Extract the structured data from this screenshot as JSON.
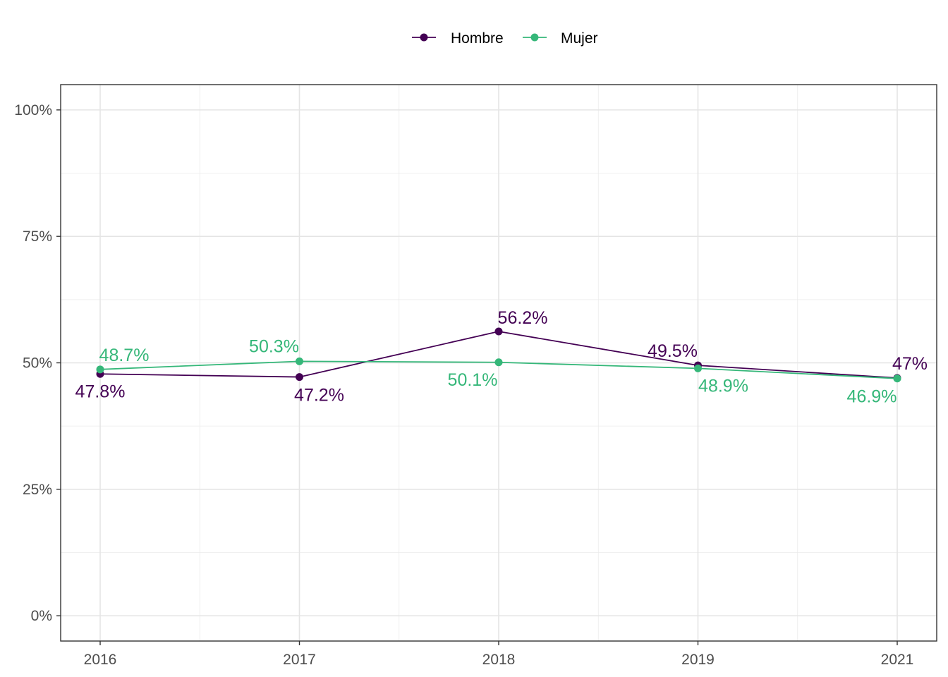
{
  "chart_data": {
    "type": "line",
    "title": "",
    "xlabel": "",
    "ylabel": "",
    "categories": [
      "2016",
      "2017",
      "2018",
      "2019",
      "2021"
    ],
    "ylim": [
      -0.05,
      1.05
    ],
    "y_ticks": [
      0,
      0.25,
      0.5,
      0.75,
      1.0
    ],
    "y_tick_labels": [
      "0%",
      "25%",
      "50%",
      "75%",
      "100%"
    ],
    "grid": true,
    "legend_position": "top",
    "series": [
      {
        "name": "Hombre",
        "color": "#440154",
        "values": [
          0.478,
          0.472,
          0.562,
          0.495,
          0.47
        ],
        "labels": [
          "47.8%",
          "47.2%",
          "56.2%",
          "49.5%",
          "47%"
        ],
        "label_positions": [
          "below",
          "below",
          "above",
          "above",
          "above"
        ]
      },
      {
        "name": "Mujer",
        "color": "#35b779",
        "values": [
          0.487,
          0.503,
          0.501,
          0.489,
          0.469
        ],
        "labels": [
          "48.7%",
          "50.3%",
          "50.1%",
          "48.9%",
          "46.9%"
        ],
        "label_positions": [
          "above",
          "above",
          "below",
          "below",
          "below"
        ]
      }
    ]
  }
}
